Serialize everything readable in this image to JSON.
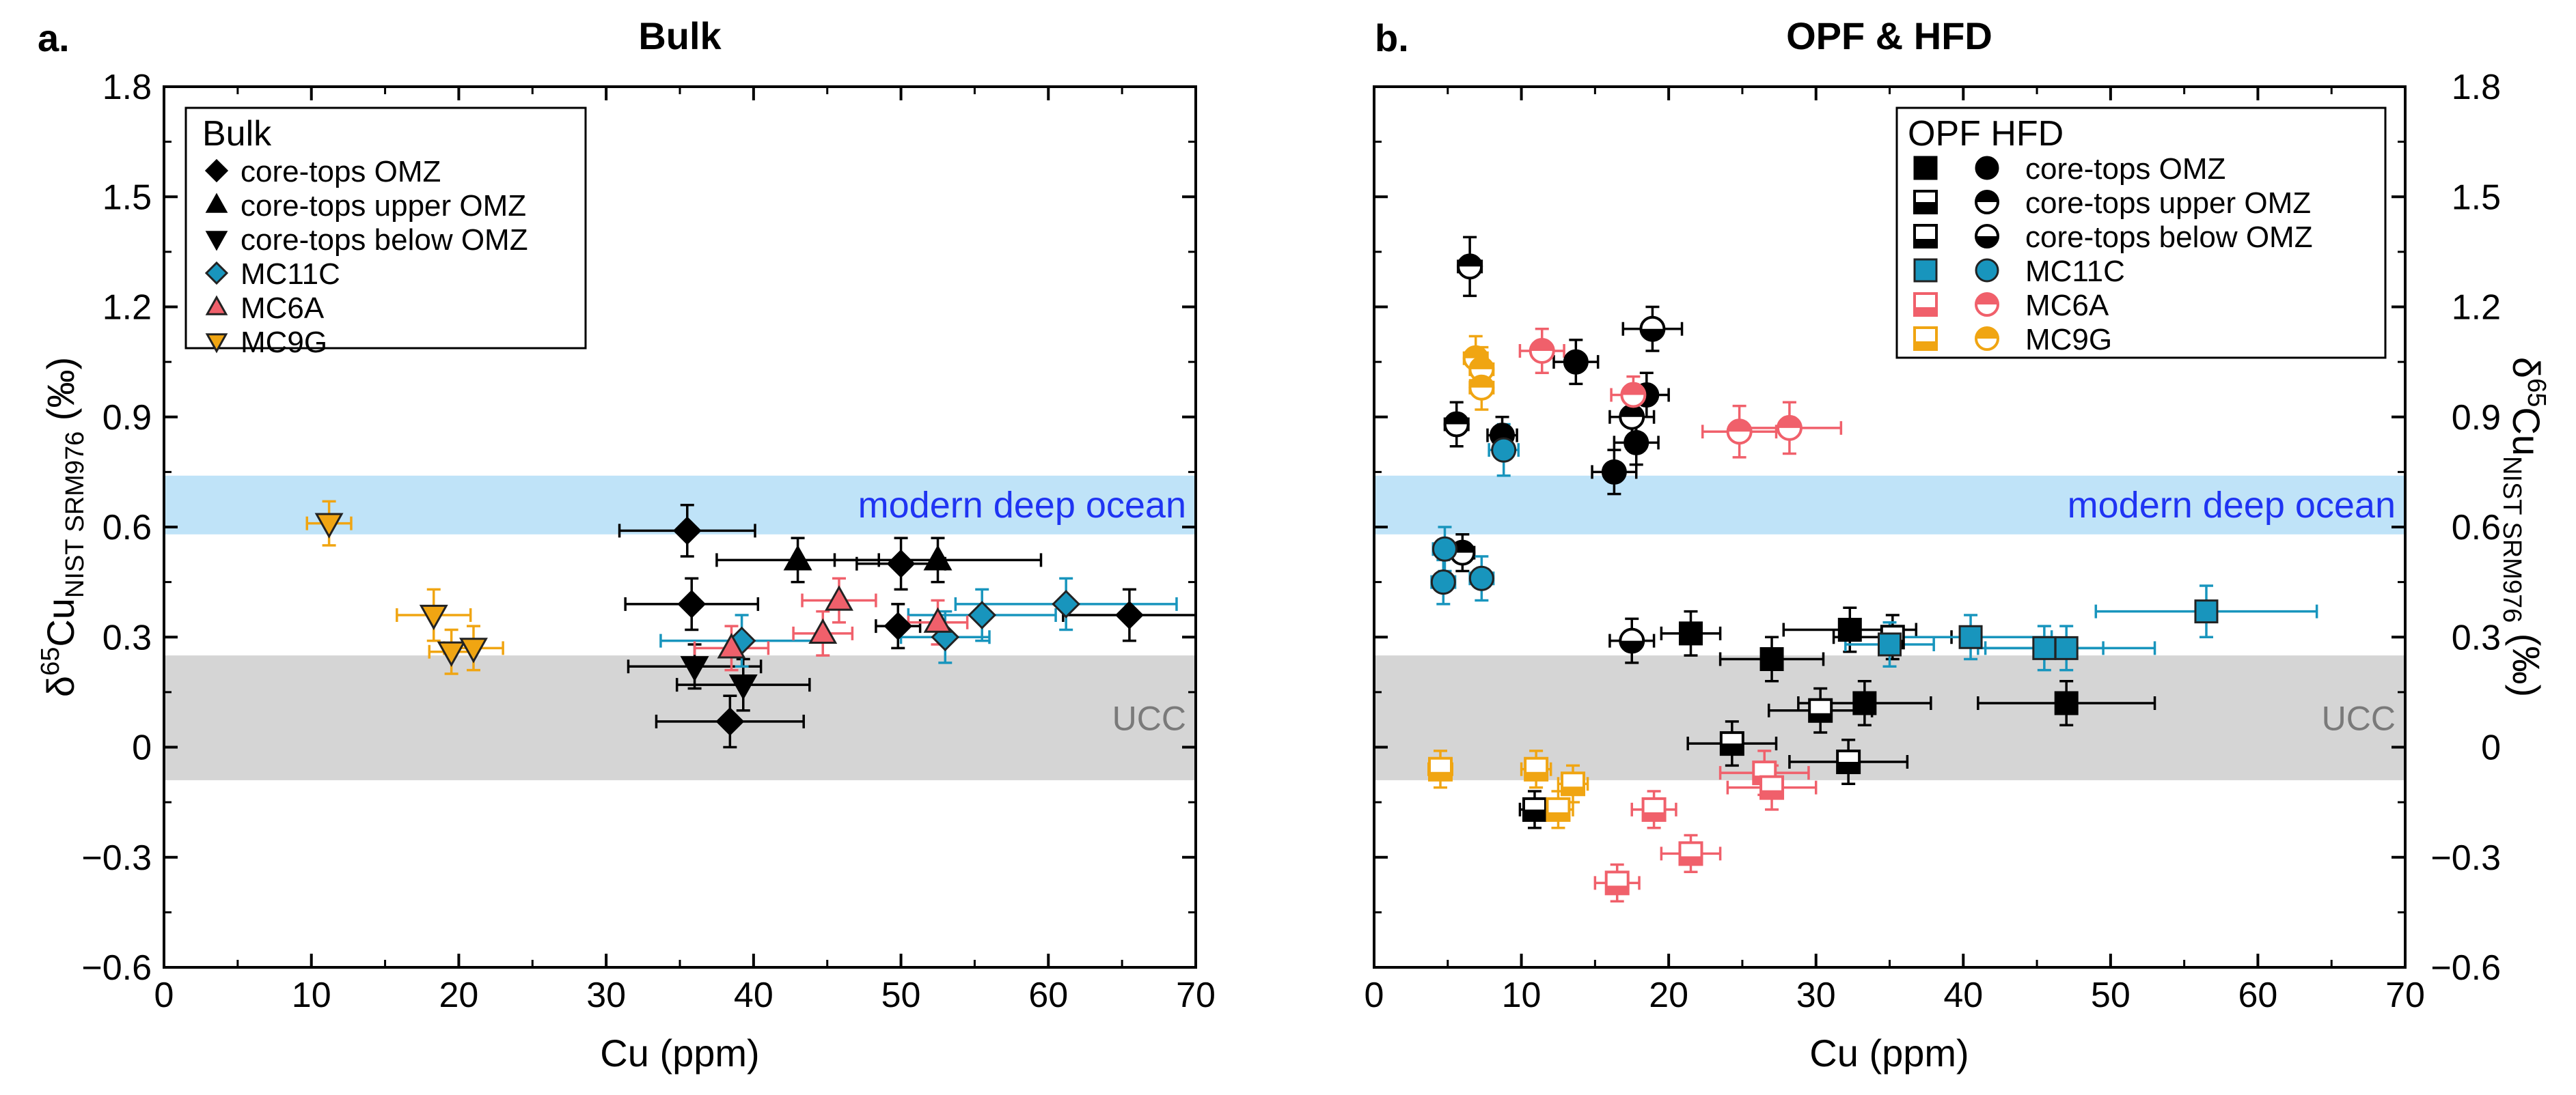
{
  "colors": {
    "black": "#000000",
    "teal": "#1895bd",
    "pink": "#f0606b",
    "orange": "#f0a512",
    "ocean_band": "#bfe3f8",
    "ucc_band": "#d5d5d5",
    "ocean_text": "#1f34f2",
    "ucc_text": "#7a7a7a"
  },
  "chart_data": [
    {
      "type": "scatter",
      "panel_label": "a.",
      "title": "Bulk",
      "xlabel": "Cu (ppm)",
      "ylabel_prefix": "δ",
      "ylabel_sup": "65",
      "ylabel_main": "Cu",
      "ylabel_sub": "NIST SRM976",
      "ylabel_unit": " (‰)",
      "xlim": [
        0,
        70
      ],
      "ylim": [
        -0.6,
        1.8
      ],
      "xticks": [
        0,
        10,
        20,
        30,
        40,
        50,
        60,
        70
      ],
      "yticks": [
        -0.6,
        -0.3,
        0,
        0.3,
        0.6,
        0.9,
        1.2,
        1.5,
        1.8
      ],
      "xtick_labels": [
        "0",
        "10",
        "20",
        "30",
        "40",
        "50",
        "60",
        "70"
      ],
      "ytick_labels": [
        "−0.6",
        "−0.3",
        "0",
        "0.3",
        "0.6",
        "0.9",
        "1.2",
        "1.5",
        "1.8"
      ],
      "y_axis_side": "left",
      "bands": [
        {
          "name": "modern deep ocean",
          "y0": 0.58,
          "y1": 0.74,
          "color": "#bfe3f8",
          "text_color": "#1f34f2"
        },
        {
          "name": "UCC",
          "y0": -0.09,
          "y1": 0.25,
          "color": "#d5d5d5",
          "text_color": "#7a7a7a"
        }
      ],
      "legend": {
        "title": "Bulk",
        "position": "top-left",
        "entries": [
          {
            "label": "core-tops OMZ",
            "marker": "diamond",
            "color": "#000000"
          },
          {
            "label": "core-tops upper OMZ",
            "marker": "triangle-up",
            "color": "#000000"
          },
          {
            "label": "core-tops below OMZ",
            "marker": "triangle-down",
            "color": "#000000"
          },
          {
            "label": "MC11C",
            "marker": "diamond",
            "color": "#1895bd"
          },
          {
            "label": "MC6A",
            "marker": "triangle-up",
            "color": "#f0606b"
          },
          {
            "label": "MC9G",
            "marker": "triangle-down",
            "color": "#f0a512"
          }
        ]
      },
      "series": [
        {
          "name": "core-tops OMZ",
          "marker": "diamond",
          "color": "#000000",
          "fill": "full",
          "points": [
            {
              "x": 35.5,
              "y": 0.59,
              "xerr": 4.6,
              "yerr": 0.07
            },
            {
              "x": 35.8,
              "y": 0.39,
              "xerr": 4.5,
              "yerr": 0.07
            },
            {
              "x": 38.4,
              "y": 0.07,
              "xerr": 5.0,
              "yerr": 0.07
            },
            {
              "x": 50.0,
              "y": 0.5,
              "xerr": 3.0,
              "yerr": 0.07
            },
            {
              "x": 49.8,
              "y": 0.33,
              "xerr": 1.5,
              "yerr": 0.06
            },
            {
              "x": 65.5,
              "y": 0.36,
              "xerr": 4.5,
              "yerr": 0.07
            }
          ]
        },
        {
          "name": "core-tops upper OMZ",
          "marker": "triangle-up",
          "color": "#000000",
          "fill": "full",
          "points": [
            {
              "x": 43.0,
              "y": 0.51,
              "xerr": 5.5,
              "yerr": 0.06
            },
            {
              "x": 52.5,
              "y": 0.51,
              "xerr": 7.0,
              "yerr": 0.06
            }
          ]
        },
        {
          "name": "core-tops below OMZ",
          "marker": "triangle-down",
          "color": "#000000",
          "fill": "full",
          "points": [
            {
              "x": 36.0,
              "y": 0.22,
              "xerr": 4.5,
              "yerr": 0.06
            },
            {
              "x": 39.3,
              "y": 0.17,
              "xerr": 4.5,
              "yerr": 0.07
            }
          ]
        },
        {
          "name": "MC11C",
          "marker": "diamond",
          "color": "#1895bd",
          "fill": "full",
          "points": [
            {
              "x": 39.2,
              "y": 0.29,
              "xerr": 5.5,
              "yerr": 0.07
            },
            {
              "x": 53.0,
              "y": 0.3,
              "xerr": 3.0,
              "yerr": 0.07
            },
            {
              "x": 55.5,
              "y": 0.36,
              "xerr": 5.0,
              "yerr": 0.07
            },
            {
              "x": 61.2,
              "y": 0.39,
              "xerr": 7.5,
              "yerr": 0.07
            }
          ]
        },
        {
          "name": "MC6A",
          "marker": "triangle-up",
          "color": "#f0606b",
          "fill": "full",
          "points": [
            {
              "x": 38.5,
              "y": 0.27,
              "xerr": 2.5,
              "yerr": 0.06
            },
            {
              "x": 44.7,
              "y": 0.31,
              "xerr": 2.0,
              "yerr": 0.06
            },
            {
              "x": 45.8,
              "y": 0.4,
              "xerr": 2.5,
              "yerr": 0.06
            },
            {
              "x": 52.5,
              "y": 0.34,
              "xerr": 2.0,
              "yerr": 0.06
            }
          ]
        },
        {
          "name": "MC9G",
          "marker": "triangle-down",
          "color": "#f0a512",
          "fill": "full",
          "points": [
            {
              "x": 11.2,
              "y": 0.61,
              "xerr": 1.5,
              "yerr": 0.06
            },
            {
              "x": 18.3,
              "y": 0.36,
              "xerr": 2.5,
              "yerr": 0.07
            },
            {
              "x": 19.5,
              "y": 0.26,
              "xerr": 1.5,
              "yerr": 0.06
            },
            {
              "x": 21.0,
              "y": 0.27,
              "xerr": 2.0,
              "yerr": 0.06
            }
          ]
        }
      ]
    },
    {
      "type": "scatter",
      "panel_label": "b.",
      "title": "OPF & HFD",
      "xlabel": "Cu (ppm)",
      "ylabel_prefix": "δ",
      "ylabel_sup": "65",
      "ylabel_main": "Cu",
      "ylabel_sub": "NIST SRM976",
      "ylabel_unit": " (‰)",
      "xlim": [
        0,
        70
      ],
      "ylim": [
        -0.6,
        1.8
      ],
      "xticks": [
        0,
        10,
        20,
        30,
        40,
        50,
        60,
        70
      ],
      "yticks": [
        -0.6,
        -0.3,
        0,
        0.3,
        0.6,
        0.9,
        1.2,
        1.5,
        1.8
      ],
      "xtick_labels": [
        "0",
        "10",
        "20",
        "30",
        "40",
        "50",
        "60",
        "70"
      ],
      "ytick_labels": [
        "−0.6",
        "−0.3",
        "0",
        "0.3",
        "0.6",
        "0.9",
        "1.2",
        "1.5",
        "1.8"
      ],
      "y_axis_side": "right",
      "bands": [
        {
          "name": "modern deep ocean",
          "y0": 0.58,
          "y1": 0.74,
          "color": "#bfe3f8",
          "text_color": "#1f34f2"
        },
        {
          "name": "UCC",
          "y0": -0.09,
          "y1": 0.25,
          "color": "#d5d5d5",
          "text_color": "#7a7a7a"
        }
      ],
      "legend": {
        "title": "OPF HFD",
        "position": "top-right",
        "entries": [
          {
            "label": "core-tops OMZ",
            "color": "#000000",
            "fill_opf": "full",
            "fill_hfd": "full"
          },
          {
            "label": "core-tops upper OMZ",
            "color": "#000000",
            "fill_opf": "bottom",
            "fill_hfd": "top"
          },
          {
            "label": "core-tops below OMZ",
            "color": "#000000",
            "fill_opf": "bottom-small",
            "fill_hfd": "bottom"
          },
          {
            "label": "MC11C",
            "color": "#1895bd",
            "fill_opf": "full",
            "fill_hfd": "full"
          },
          {
            "label": "MC6A",
            "color": "#f0606b",
            "fill_opf": "bottom-small",
            "fill_hfd": "top"
          },
          {
            "label": "MC9G",
            "color": "#f0a512",
            "fill_opf": "bottom-small",
            "fill_hfd": "top"
          }
        ]
      },
      "series": [
        {
          "name": "OPF core-tops OMZ",
          "marker": "square",
          "color": "#000000",
          "fill": "full",
          "points": [
            {
              "x": 21.5,
              "y": 0.31,
              "xerr": 2.0,
              "yerr": 0.06
            },
            {
              "x": 27.0,
              "y": 0.24,
              "xerr": 3.5,
              "yerr": 0.06
            },
            {
              "x": 32.3,
              "y": 0.32,
              "xerr": 4.5,
              "yerr": 0.06
            },
            {
              "x": 33.3,
              "y": 0.12,
              "xerr": 4.5,
              "yerr": 0.06
            },
            {
              "x": 47.0,
              "y": 0.12,
              "xerr": 6.0,
              "yerr": 0.06
            }
          ]
        },
        {
          "name": "OPF core-tops upper OMZ",
          "marker": "square",
          "color": "#000000",
          "fill": "bottom",
          "points": [
            {
              "x": 24.3,
              "y": 0.01,
              "xerr": 3.0,
              "yerr": 0.06
            },
            {
              "x": 32.2,
              "y": -0.04,
              "xerr": 4.0,
              "yerr": 0.06
            },
            {
              "x": 10.9,
              "y": -0.17,
              "xerr": 1.0,
              "yerr": 0.05
            }
          ]
        },
        {
          "name": "OPF core-tops below OMZ",
          "marker": "square",
          "color": "#000000",
          "fill": "bottom-small",
          "points": [
            {
              "x": 30.3,
              "y": 0.1,
              "xerr": 3.5,
              "yerr": 0.06
            },
            {
              "x": 35.2,
              "y": 0.3,
              "xerr": 4.0,
              "yerr": 0.06
            }
          ]
        },
        {
          "name": "OPF MC11C",
          "marker": "square",
          "color": "#1895bd",
          "fill": "full",
          "points": [
            {
              "x": 35.0,
              "y": 0.28,
              "xerr": 3.0,
              "yerr": 0.06
            },
            {
              "x": 40.5,
              "y": 0.3,
              "xerr": 5.5,
              "yerr": 0.06
            },
            {
              "x": 45.5,
              "y": 0.27,
              "xerr": 4.0,
              "yerr": 0.06
            },
            {
              "x": 47.0,
              "y": 0.27,
              "xerr": 6.0,
              "yerr": 0.06
            },
            {
              "x": 56.5,
              "y": 0.37,
              "xerr": 7.5,
              "yerr": 0.07
            }
          ]
        },
        {
          "name": "OPF MC6A",
          "marker": "square",
          "color": "#f0606b",
          "fill": "bottom-small",
          "points": [
            {
              "x": 16.5,
              "y": -0.37,
              "xerr": 1.5,
              "yerr": 0.05
            },
            {
              "x": 19.0,
              "y": -0.17,
              "xerr": 1.5,
              "yerr": 0.05
            },
            {
              "x": 21.5,
              "y": -0.29,
              "xerr": 2.0,
              "yerr": 0.05
            },
            {
              "x": 26.5,
              "y": -0.07,
              "xerr": 3.0,
              "yerr": 0.06
            },
            {
              "x": 27.0,
              "y": -0.11,
              "xerr": 3.0,
              "yerr": 0.06
            }
          ]
        },
        {
          "name": "OPF MC9G",
          "marker": "square",
          "color": "#f0a512",
          "fill": "bottom-small",
          "points": [
            {
              "x": 4.5,
              "y": -0.06,
              "xerr": 0.8,
              "yerr": 0.05
            },
            {
              "x": 11.0,
              "y": -0.06,
              "xerr": 1.0,
              "yerr": 0.05
            },
            {
              "x": 12.5,
              "y": -0.17,
              "xerr": 1.0,
              "yerr": 0.05
            },
            {
              "x": 13.5,
              "y": -0.1,
              "xerr": 1.0,
              "yerr": 0.05
            }
          ]
        },
        {
          "name": "HFD core-tops OMZ",
          "marker": "circle",
          "color": "#000000",
          "fill": "full",
          "points": [
            {
              "x": 13.7,
              "y": 1.05,
              "xerr": 1.5,
              "yerr": 0.06
            },
            {
              "x": 16.3,
              "y": 0.75,
              "xerr": 1.5,
              "yerr": 0.06
            },
            {
              "x": 17.8,
              "y": 0.83,
              "xerr": 1.5,
              "yerr": 0.06
            },
            {
              "x": 18.5,
              "y": 0.96,
              "xerr": 1.5,
              "yerr": 0.06
            },
            {
              "x": 8.7,
              "y": 0.85,
              "xerr": 1.0,
              "yerr": 0.05
            }
          ]
        },
        {
          "name": "HFD core-tops upper OMZ",
          "marker": "circle",
          "color": "#000000",
          "fill": "top",
          "points": [
            {
              "x": 6.5,
              "y": 1.31,
              "xerr": 0.8,
              "yerr": 0.08
            },
            {
              "x": 5.6,
              "y": 0.88,
              "xerr": 0.8,
              "yerr": 0.06
            },
            {
              "x": 6.0,
              "y": 0.53,
              "xerr": 0.8,
              "yerr": 0.05
            },
            {
              "x": 17.5,
              "y": 0.9,
              "xerr": 1.5,
              "yerr": 0.06
            }
          ]
        },
        {
          "name": "HFD core-tops below OMZ",
          "marker": "circle",
          "color": "#000000",
          "fill": "bottom",
          "points": [
            {
              "x": 18.9,
              "y": 1.14,
              "xerr": 2.0,
              "yerr": 0.06
            },
            {
              "x": 17.5,
              "y": 0.29,
              "xerr": 1.5,
              "yerr": 0.06
            }
          ]
        },
        {
          "name": "HFD MC11C",
          "marker": "circle",
          "color": "#1895bd",
          "fill": "full",
          "points": [
            {
              "x": 4.8,
              "y": 0.54,
              "xerr": 0.8,
              "yerr": 0.06
            },
            {
              "x": 4.7,
              "y": 0.45,
              "xerr": 0.8,
              "yerr": 0.06
            },
            {
              "x": 7.3,
              "y": 0.46,
              "xerr": 0.8,
              "yerr": 0.06
            },
            {
              "x": 8.8,
              "y": 0.81,
              "xerr": 1.0,
              "yerr": 0.07
            }
          ]
        },
        {
          "name": "HFD MC6A",
          "marker": "circle",
          "color": "#f0606b",
          "fill": "top",
          "points": [
            {
              "x": 11.4,
              "y": 1.08,
              "xerr": 1.5,
              "yerr": 0.06
            },
            {
              "x": 17.6,
              "y": 0.96,
              "xerr": 1.5,
              "yerr": 0.05
            },
            {
              "x": 24.8,
              "y": 0.86,
              "xerr": 2.5,
              "yerr": 0.07
            },
            {
              "x": 28.2,
              "y": 0.87,
              "xerr": 3.5,
              "yerr": 0.07
            }
          ]
        },
        {
          "name": "HFD MC9G",
          "marker": "circle",
          "color": "#f0a512",
          "fill": "top",
          "points": [
            {
              "x": 6.9,
              "y": 1.06,
              "xerr": 0.8,
              "yerr": 0.06
            },
            {
              "x": 7.3,
              "y": 1.03,
              "xerr": 0.8,
              "yerr": 0.06
            },
            {
              "x": 7.3,
              "y": 0.98,
              "xerr": 0.8,
              "yerr": 0.06
            }
          ]
        }
      ]
    }
  ]
}
